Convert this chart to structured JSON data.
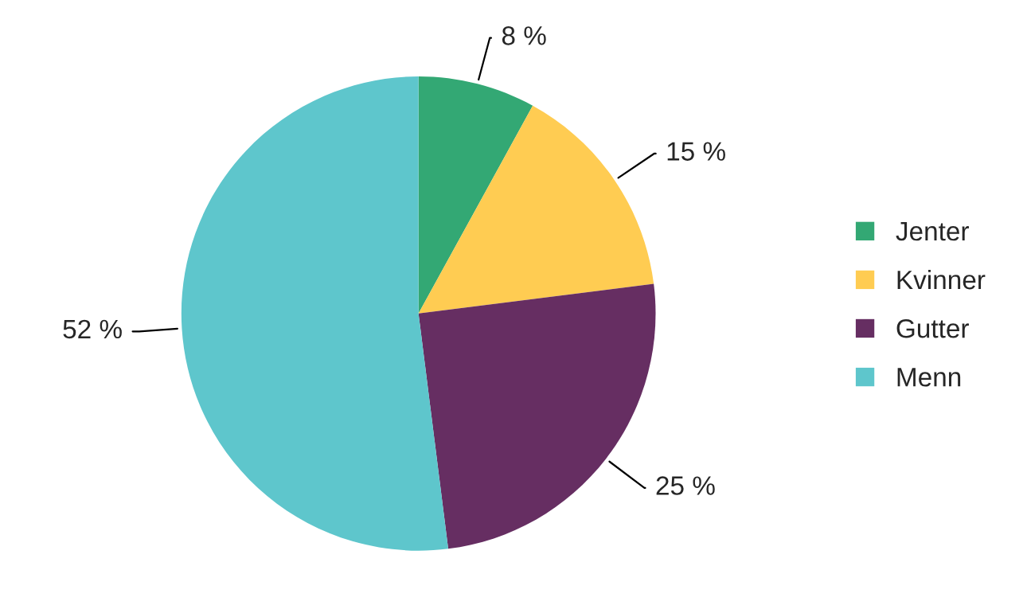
{
  "chart_data": {
    "type": "pie",
    "categories": [
      "Jenter",
      "Kvinner",
      "Gutter",
      "Menn"
    ],
    "values": [
      8,
      15,
      25,
      52
    ],
    "colors": [
      "#33a874",
      "#ffcc52",
      "#662e62",
      "#5ec6cc"
    ],
    "value_labels": [
      "8 %",
      "15 %",
      "25 %",
      "52 %"
    ],
    "legend": "right"
  }
}
